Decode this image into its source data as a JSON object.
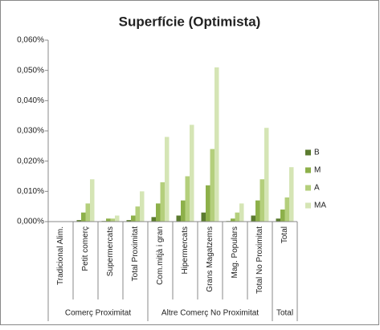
{
  "chart_data": {
    "type": "bar",
    "title": "Superfície (Optimista)",
    "categories": [
      "Tradicional Alim.",
      "Petit comerç",
      "Supermercats",
      "Total Proximitat",
      "Com.mitjà i gran",
      "Hipermercats",
      "Grans Magatzems",
      "Mag. Populars",
      "Total No Proximitat",
      "Total"
    ],
    "groups": [
      {
        "label": "Comerç Proximitat",
        "size": 4
      },
      {
        "label": "Altre Comerç No Proximitat",
        "size": 5
      },
      {
        "label": "Total",
        "size": 1
      }
    ],
    "series": [
      {
        "name": "B",
        "color": "#5b7b2f",
        "values": [
          0,
          0.0005,
          0.0002,
          0.0005,
          0.0015,
          0.002,
          0.003,
          0.0002,
          0.002,
          0.001
        ]
      },
      {
        "name": "M",
        "color": "#8db04a",
        "values": [
          0,
          0.003,
          0.001,
          0.002,
          0.006,
          0.007,
          0.012,
          0.001,
          0.007,
          0.004
        ]
      },
      {
        "name": "A",
        "color": "#b4cf7c",
        "values": [
          0,
          0.006,
          0.001,
          0.005,
          0.013,
          0.015,
          0.024,
          0.003,
          0.014,
          0.008
        ]
      },
      {
        "name": "MA",
        "color": "#d5e5b5",
        "values": [
          0,
          0.014,
          0.002,
          0.01,
          0.028,
          0.032,
          0.051,
          0.006,
          0.031,
          0.018
        ]
      }
    ],
    "ylim": [
      0,
      0.06
    ],
    "yticks": [
      {
        "value": 0,
        "label": "0,000%"
      },
      {
        "value": 0.01,
        "label": "0,010%"
      },
      {
        "value": 0.02,
        "label": "0,020%"
      },
      {
        "value": 0.03,
        "label": "0,030%"
      },
      {
        "value": 0.04,
        "label": "0,040%"
      },
      {
        "value": 0.05,
        "label": "0,050%"
      },
      {
        "value": 0.06,
        "label": "0,060%"
      }
    ],
    "grid": false,
    "legend": "right"
  }
}
